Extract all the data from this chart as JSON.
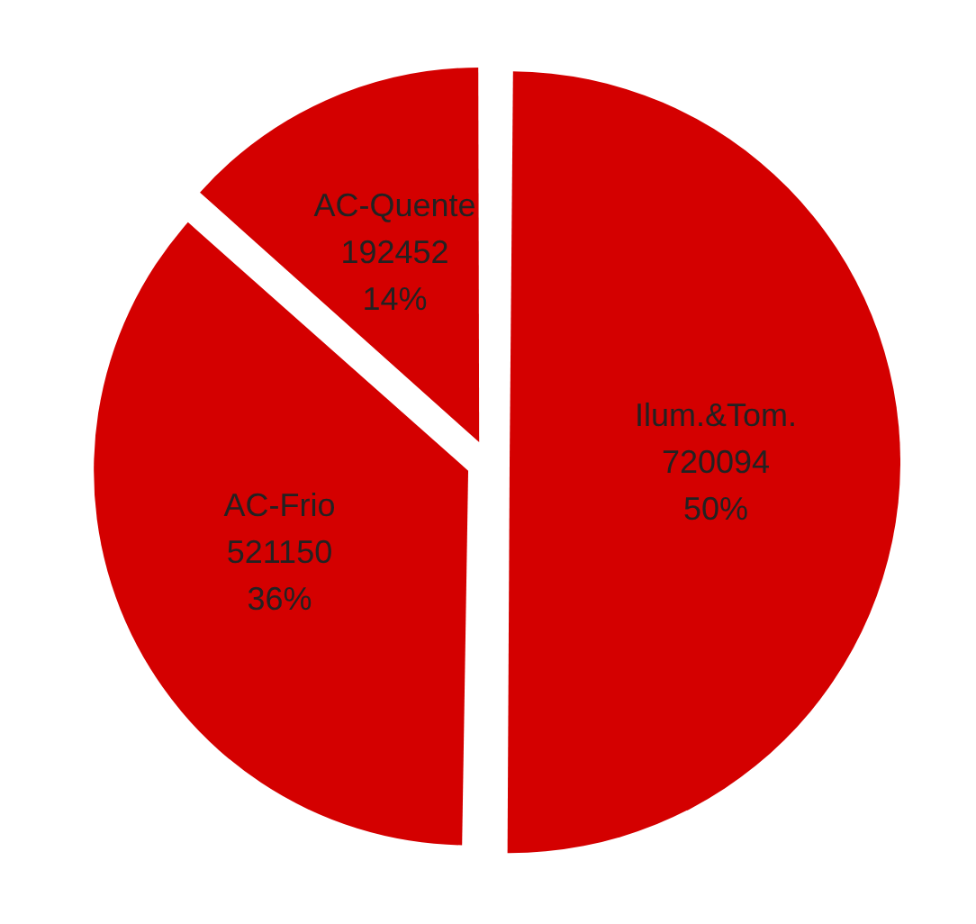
{
  "chart_data": {
    "type": "pie",
    "categories": [
      "Ilum.&Tom.",
      "AC-Frio",
      "AC-Quente"
    ],
    "values": [
      720094,
      521150,
      192452
    ],
    "value_labels": [
      "720094\n50%",
      "521150\n36%",
      "192452\n14%"
    ],
    "colors": [
      "#d40000",
      "#d40000",
      "#d40000"
    ],
    "legend": false
  }
}
